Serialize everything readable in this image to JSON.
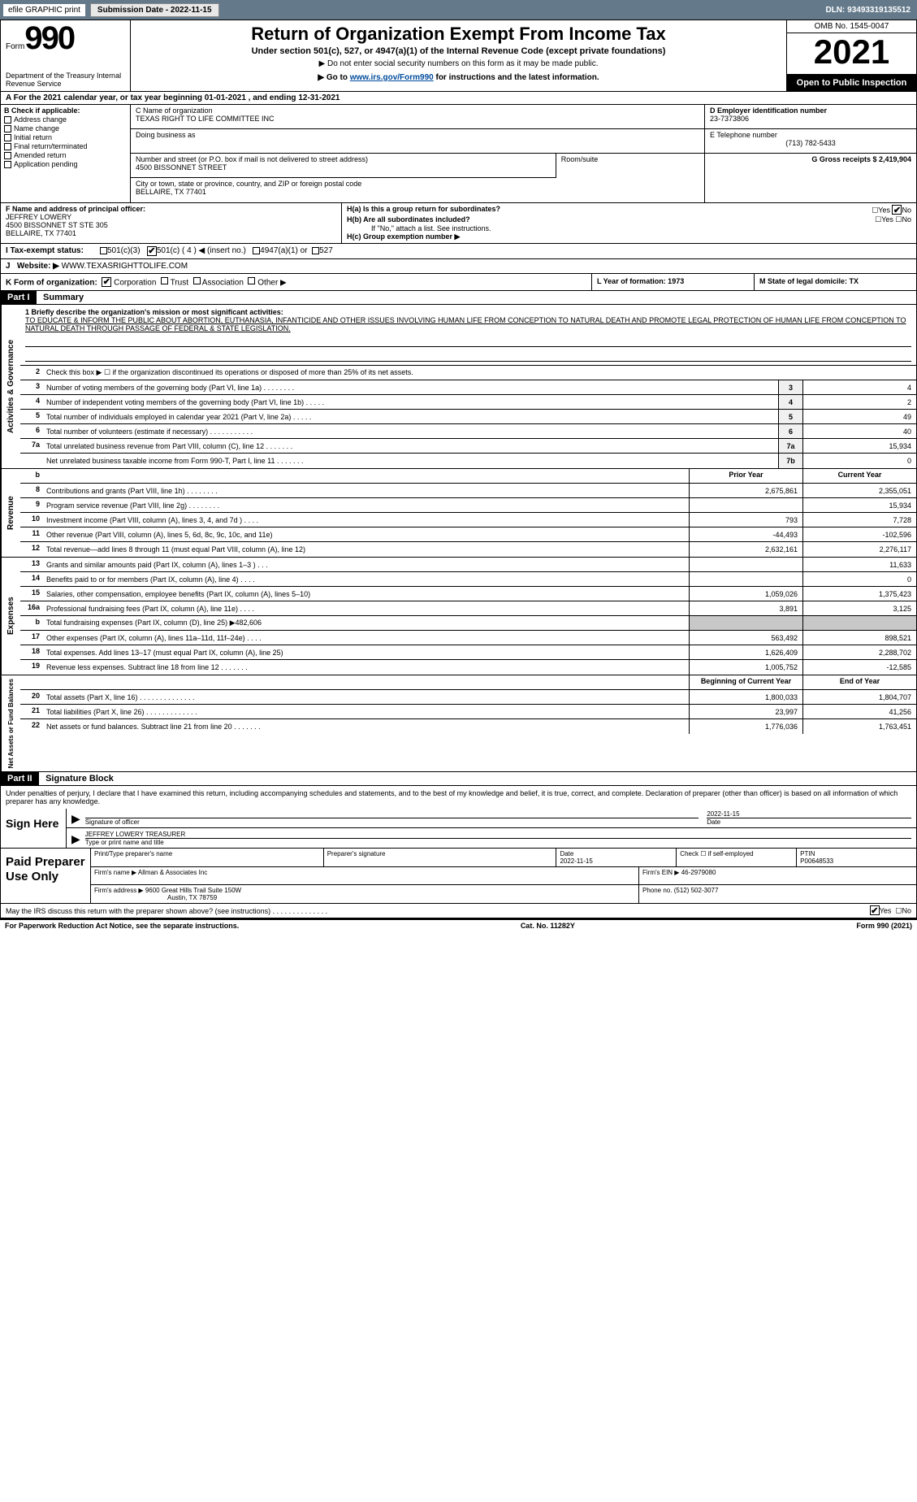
{
  "topbar": {
    "efile": "efile GRAPHIC print",
    "submission_btn": "Submission Date - 2022-11-15",
    "dln": "DLN: 93493319135512"
  },
  "header": {
    "form_word": "Form",
    "form_num": "990",
    "dept": "Department of the Treasury Internal Revenue Service",
    "title": "Return of Organization Exempt From Income Tax",
    "subtitle": "Under section 501(c), 527, or 4947(a)(1) of the Internal Revenue Code (except private foundations)",
    "sub2": "▶ Do not enter social security numbers on this form as it may be made public.",
    "goto_pre": "▶ Go to ",
    "goto_link": "www.irs.gov/Form990",
    "goto_post": " for instructions and the latest information.",
    "omb": "OMB No. 1545-0047",
    "year": "2021",
    "open": "Open to Public Inspection"
  },
  "section_a": {
    "tax_year": "A For the 2021 calendar year, or tax year beginning 01-01-2021    , and ending 12-31-2021",
    "b_label": "B Check if applicable:",
    "b_items": [
      "Address change",
      "Name change",
      "Initial return",
      "Final return/terminated",
      "Amended return",
      "Application pending"
    ],
    "c_name_label": "C Name of organization",
    "c_name": "TEXAS RIGHT TO LIFE COMMITTEE INC",
    "dba_label": "Doing business as",
    "street_label": "Number and street (or P.O. box if mail is not delivered to street address)",
    "street": "4500 BISSONNET STREET",
    "room_label": "Room/suite",
    "city_label": "City or town, state or province, country, and ZIP or foreign postal code",
    "city": "BELLAIRE, TX  77401",
    "d_label": "D Employer identification number",
    "d_val": "23-7373806",
    "e_label": "E Telephone number",
    "e_val": "(713) 782-5433",
    "g_label": "G Gross receipts $ 2,419,904",
    "f_label": "F  Name and address of principal officer:",
    "f_name": "JEFFREY LOWERY",
    "f_addr1": "4500 BISSONNET ST STE 305",
    "f_addr2": "BELLAIRE, TX  77401",
    "ha": "H(a)  Is this a group return for subordinates?",
    "hb": "H(b)  Are all subordinates included?",
    "hb_note": "If \"No,\" attach a list. See instructions.",
    "hc": "H(c)  Group exemption number ▶",
    "yes": "Yes",
    "no": "No"
  },
  "status_row": {
    "i_label": "I  Tax-exempt status:",
    "opt1": "501(c)(3)",
    "opt2": "501(c) ( 4 ) ◀ (insert no.)",
    "opt3": "4947(a)(1) or",
    "opt4": "527"
  },
  "website": {
    "j": "J",
    "label": "Website: ▶",
    "val": " WWW.TEXASRIGHTTOLIFE.COM"
  },
  "k_row": {
    "k_label": "K Form of organization:",
    "corp": "Corporation",
    "trust": "Trust",
    "assoc": "Association",
    "other": "Other ▶",
    "l": "L Year of formation: 1973",
    "m": "M State of legal domicile: TX"
  },
  "part1": {
    "hdr": "Part I",
    "title": "Summary",
    "line1_label": "1  Briefly describe the organization's mission or most significant activities:",
    "mission": "TO EDUCATE & INFORM THE PUBLIC ABOUT ABORTION, EUTHANASIA, INFANTICIDE AND OTHER ISSUES INVOLVING HUMAN LIFE FROM CONCEPTION TO NATURAL DEATH AND PROMOTE LEGAL PROTECTION OF HUMAN LIFE FROM CONCEPTION TO NATURAL DEATH THROUGH PASSAGE OF FEDERAL & STATE LEGISLATION.",
    "line2": "Check this box ▶ ☐  if the organization discontinued its operations or disposed of more than 25% of its net assets.",
    "gov_lines": [
      {
        "n": "3",
        "t": "Number of voting members of the governing body (Part VI, line 1a)  .    .    .    .    .    .    .    .",
        "b": "3",
        "v": "4"
      },
      {
        "n": "4",
        "t": "Number of independent voting members of the governing body (Part VI, line 1b)   .    .    .    .    .",
        "b": "4",
        "v": "2"
      },
      {
        "n": "5",
        "t": "Total number of individuals employed in calendar year 2021 (Part V, line 2a)   .    .    .    .    .",
        "b": "5",
        "v": "49"
      },
      {
        "n": "6",
        "t": "Total number of volunteers (estimate if necessary)   .    .    .    .    .    .    .    .    .    .    .",
        "b": "6",
        "v": "40"
      },
      {
        "n": "7a",
        "t": "Total unrelated business revenue from Part VIII, column (C), line 12   .    .    .    .    .    .    .",
        "b": "7a",
        "v": "15,934"
      },
      {
        "n": "",
        "t": "Net unrelated business taxable income from Form 990-T, Part I, line 11   .    .    .    .    .    .    .",
        "b": "7b",
        "v": "0"
      }
    ],
    "prior_hdr": "Prior Year",
    "current_hdr": "Current Year",
    "rev_lines": [
      {
        "n": "8",
        "t": "Contributions and grants (Part VIII, line 1h)   .    .    .    .    .    .    .    .",
        "p": "2,675,861",
        "c": "2,355,051"
      },
      {
        "n": "9",
        "t": "Program service revenue (Part VIII, line 2g)   .    .    .    .    .    .    .    .",
        "p": "",
        "c": "15,934"
      },
      {
        "n": "10",
        "t": "Investment income (Part VIII, column (A), lines 3, 4, and 7d )   .    .    .    .",
        "p": "793",
        "c": "7,728"
      },
      {
        "n": "11",
        "t": "Other revenue (Part VIII, column (A), lines 5, 6d, 8c, 9c, 10c, and 11e)",
        "p": "-44,493",
        "c": "-102,596"
      },
      {
        "n": "12",
        "t": "Total revenue—add lines 8 through 11 (must equal Part VIII, column (A), line 12)",
        "p": "2,632,161",
        "c": "2,276,117"
      }
    ],
    "exp_lines": [
      {
        "n": "13",
        "t": "Grants and similar amounts paid (Part IX, column (A), lines 1–3 )   .    .    .",
        "p": "",
        "c": "11,633"
      },
      {
        "n": "14",
        "t": "Benefits paid to or for members (Part IX, column (A), line 4)   .    .    .    .",
        "p": "",
        "c": "0"
      },
      {
        "n": "15",
        "t": "Salaries, other compensation, employee benefits (Part IX, column (A), lines 5–10)",
        "p": "1,059,026",
        "c": "1,375,423"
      },
      {
        "n": "16a",
        "t": "Professional fundraising fees (Part IX, column (A), line 11e)   .    .    .    .",
        "p": "3,891",
        "c": "3,125"
      },
      {
        "n": "b",
        "t": "Total fundraising expenses (Part IX, column (D), line 25) ▶482,606",
        "p": "shaded",
        "c": "shaded"
      },
      {
        "n": "17",
        "t": "Other expenses (Part IX, column (A), lines 11a–11d, 11f–24e)   .    .    .    .",
        "p": "563,492",
        "c": "898,521"
      },
      {
        "n": "18",
        "t": "Total expenses. Add lines 13–17 (must equal Part IX, column (A), line 25)",
        "p": "1,626,409",
        "c": "2,288,702"
      },
      {
        "n": "19",
        "t": "Revenue less expenses. Subtract line 18 from line 12   .    .    .    .    .    .    .",
        "p": "1,005,752",
        "c": "-12,585"
      }
    ],
    "begin_hdr": "Beginning of Current Year",
    "end_hdr": "End of Year",
    "net_lines": [
      {
        "n": "20",
        "t": "Total assets (Part X, line 16)  .    .    .    .    .    .    .    .    .    .    .    .    .    .",
        "p": "1,800,033",
        "c": "1,804,707"
      },
      {
        "n": "21",
        "t": "Total liabilities (Part X, line 26)   .    .    .    .    .    .    .    .    .    .    .    .    .",
        "p": "23,997",
        "c": "41,256"
      },
      {
        "n": "22",
        "t": "Net assets or fund balances. Subtract line 21 from line 20   .    .    .    .    .    .    .",
        "p": "1,776,036",
        "c": "1,763,451"
      }
    ],
    "side_gov": "Activities & Governance",
    "side_rev": "Revenue",
    "side_exp": "Expenses",
    "side_net": "Net Assets or Fund Balances"
  },
  "part2": {
    "hdr": "Part II",
    "title": "Signature Block",
    "decl": "Under penalties of perjury, I declare that I have examined this return, including accompanying schedules and statements, and to the best of my knowledge and belief, it is true, correct, and complete. Declaration of preparer (other than officer) is based on all information of which preparer has any knowledge.",
    "sign_here": "Sign Here",
    "sig_officer": "Signature of officer",
    "sig_date": "2022-11-15",
    "date_lbl": "Date",
    "officer_name": "JEFFREY LOWERY TREASURER",
    "type_name": "Type or print name and title",
    "paid": "Paid Preparer Use Only",
    "prep_name_lbl": "Print/Type preparer's name",
    "prep_sig_lbl": "Preparer's signature",
    "prep_date_lbl": "Date",
    "prep_date": "2022-11-15",
    "check_if": "Check ☐ if self-employed",
    "ptin_lbl": "PTIN",
    "ptin": "P00648533",
    "firm_name_lbl": "Firm's name    ▶ ",
    "firm_name": "Allman & Associates Inc",
    "firm_ein_lbl": "Firm's EIN ▶ ",
    "firm_ein": "46-2979080",
    "firm_addr_lbl": "Firm's address ▶ ",
    "firm_addr1": "9600 Great Hills Trail Suite 150W",
    "firm_addr2": "Austin, TX  78759",
    "phone_lbl": "Phone no. ",
    "phone": "(512) 502-3077",
    "may_irs": "May the IRS discuss this return with the preparer shown above? (see instructions)   .    .    .    .    .    .    .    .    .    .    .    .    .    .",
    "yes": "Yes",
    "no": "No"
  },
  "footer": {
    "pra": "For Paperwork Reduction Act Notice, see the separate instructions.",
    "cat": "Cat. No. 11282Y",
    "form": "Form 990 (2021)"
  }
}
